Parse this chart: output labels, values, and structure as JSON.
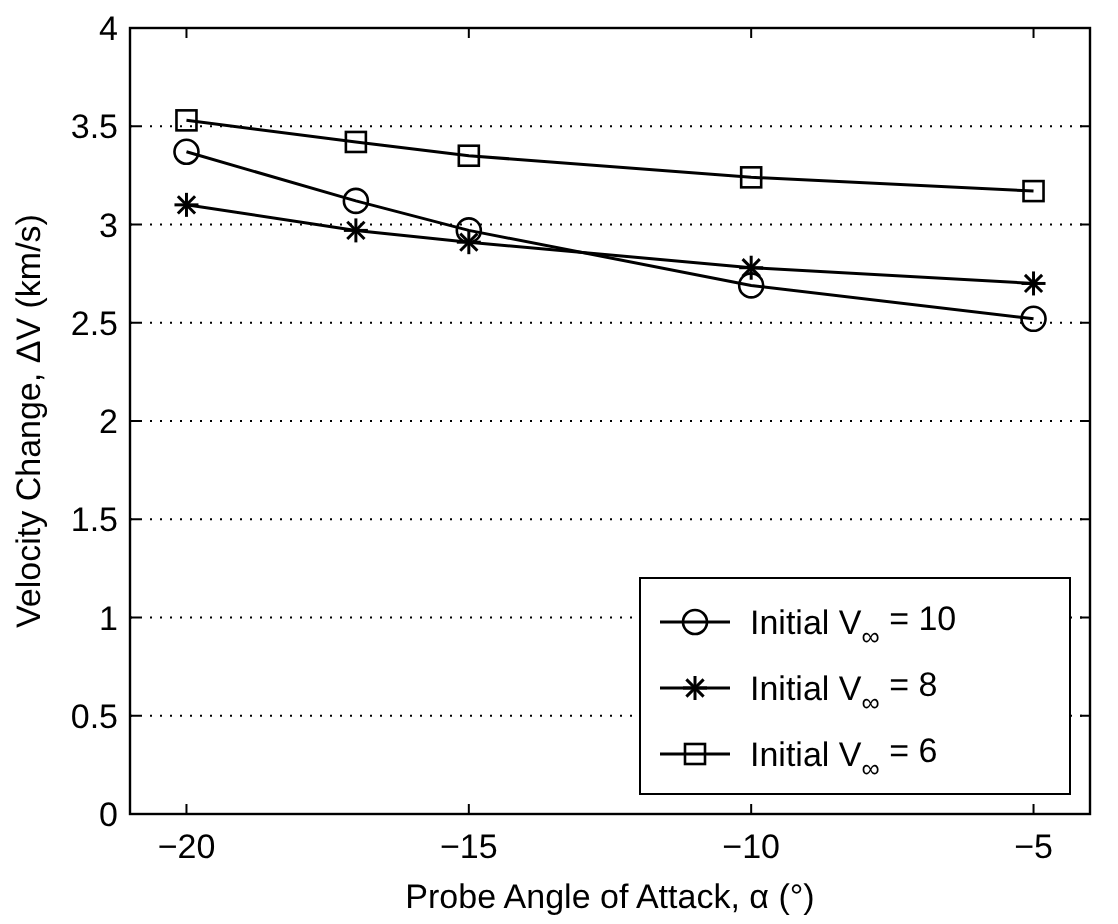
{
  "chart_data": {
    "type": "line",
    "xlabel": "Probe Angle of Attack, α (°)",
    "ylabel": "Velocity Change, ΔV (km/s)",
    "x": [
      -20,
      -17,
      -15,
      -10,
      -5
    ],
    "series": [
      {
        "name": "Initial V$_{∞}$ = 10",
        "color": "#000000",
        "marker": "circle",
        "values": [
          3.37,
          3.12,
          2.97,
          2.69,
          2.52
        ]
      },
      {
        "name": "Initial V$_{∞}$ = 8",
        "color": "#000000",
        "marker": "cross",
        "values": [
          3.1,
          2.97,
          2.91,
          2.78,
          2.7
        ]
      },
      {
        "name": "Initial V$_{∞}$ = 6",
        "color": "#000000",
        "marker": "square",
        "values": [
          3.53,
          3.42,
          3.35,
          3.24,
          3.17
        ]
      }
    ],
    "xlim": [
      -21,
      -4
    ],
    "xticks": [
      {
        "value": -20,
        "label": "−20"
      },
      {
        "value": -15,
        "label": "−15"
      },
      {
        "value": -10,
        "label": "−10"
      },
      {
        "value": -5,
        "label": "−5"
      }
    ],
    "ylim": [
      0,
      4
    ],
    "yticks": [
      0,
      0.5,
      1,
      1.5,
      2,
      2.5,
      3,
      3.5,
      4
    ],
    "grid": "y",
    "legend": "bottom right",
    "line_style": "solid"
  }
}
